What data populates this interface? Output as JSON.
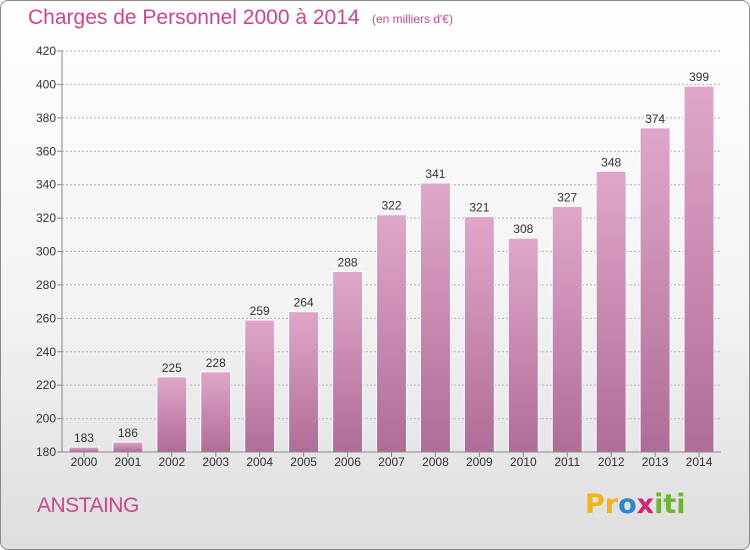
{
  "header": {
    "title": "Charges de Personnel 2000 à 2014",
    "subtitle": "(en milliers d'€)"
  },
  "footer": {
    "commune": "ANSTAING",
    "logo_text": "Proxiti",
    "logo_parts": [
      "Pr",
      "o",
      "x",
      "iti"
    ]
  },
  "colors": {
    "bar_top": "#e0a7ca",
    "bar_bottom": "#b06c98",
    "title": "#c8478d",
    "axis": "#8a8a8a",
    "grid": "#b0b0b0"
  },
  "chart_data": {
    "type": "bar",
    "title": "Charges de Personnel 2000 à 2014",
    "subtitle": "(en milliers d'€)",
    "xlabel": "",
    "ylabel": "",
    "categories": [
      "2000",
      "2001",
      "2002",
      "2003",
      "2004",
      "2005",
      "2006",
      "2007",
      "2008",
      "2009",
      "2010",
      "2011",
      "2012",
      "2013",
      "2014"
    ],
    "values": [
      183,
      186,
      225,
      228,
      259,
      264,
      288,
      322,
      341,
      321,
      308,
      327,
      348,
      374,
      399
    ],
    "ylim": [
      180,
      420
    ],
    "yticks": [
      180,
      200,
      220,
      240,
      260,
      280,
      300,
      320,
      340,
      360,
      380,
      400,
      420
    ],
    "grid": true,
    "legend": "none"
  }
}
